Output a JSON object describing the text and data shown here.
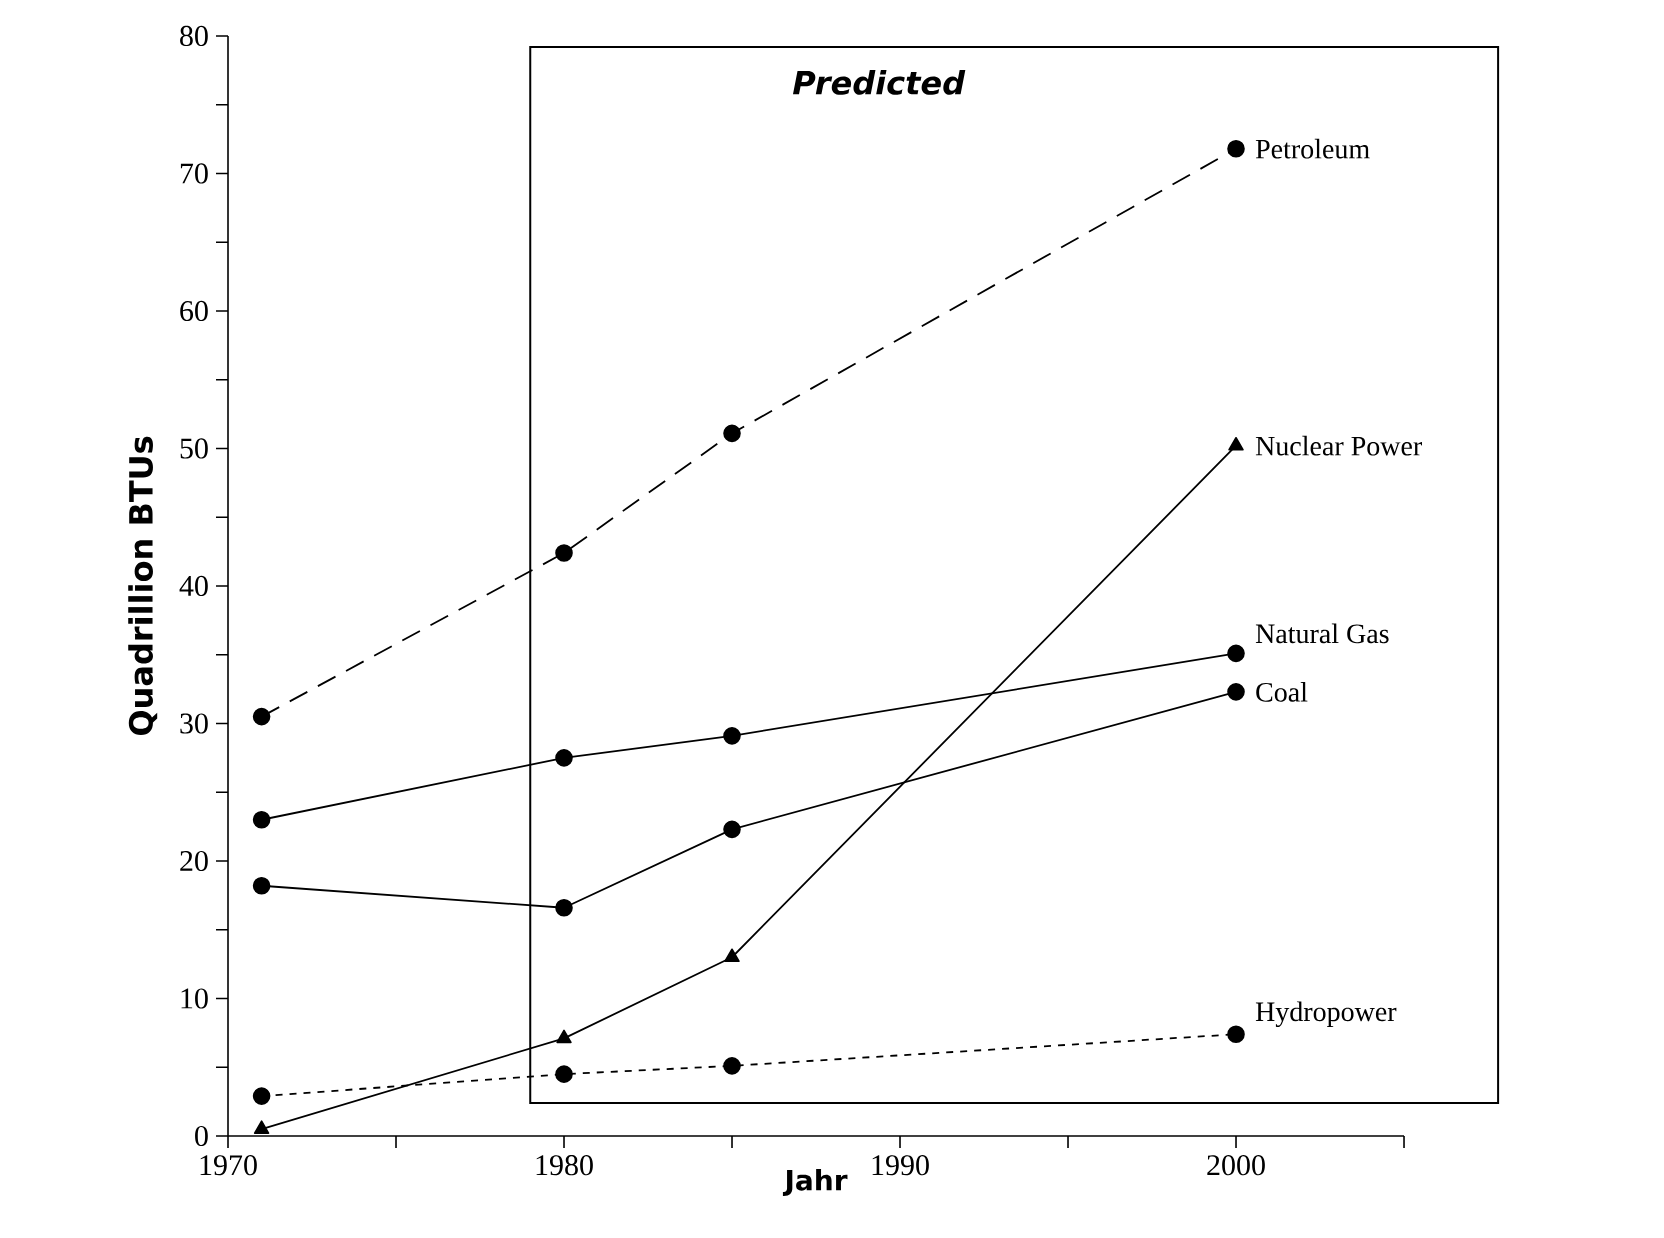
{
  "chart_data": {
    "type": "line",
    "xlabel": "Jahr",
    "ylabel": "Quadrillion BTUs",
    "annotations": [
      "Predicted"
    ],
    "x": [
      1971,
      1980,
      1985,
      2000
    ],
    "xlim": [
      1970,
      2005
    ],
    "ylim": [
      0,
      80
    ],
    "xticks": [
      1970,
      {
        "value": 1975,
        "label": null
      },
      1980,
      {
        "value": 1985,
        "label": null
      },
      1990,
      {
        "value": 1995,
        "label": null
      },
      2000,
      {
        "value": 2005,
        "label": null
      }
    ],
    "yticks": [
      0,
      {
        "value": 5,
        "label": null
      },
      10,
      {
        "value": 15,
        "label": null
      },
      20,
      {
        "value": 25,
        "label": null
      },
      30,
      {
        "value": 35,
        "label": null
      },
      40,
      {
        "value": 45,
        "label": null
      },
      50,
      {
        "value": 55,
        "label": null
      },
      60,
      {
        "value": 65,
        "label": null
      },
      70,
      {
        "value": 75,
        "label": null
      },
      80
    ],
    "grid": false,
    "legend": false,
    "series": [
      {
        "name": "Petroleum",
        "color": "#000000",
        "values": [
          30.5,
          42.4,
          51.1,
          71.8
        ],
        "marker": "circle",
        "line_style": "dashed"
      },
      {
        "name": "Nuclear Power",
        "color": "#000000",
        "values": [
          0.5,
          7.1,
          13.0,
          50.2
        ],
        "marker": "triangle",
        "line_style": "solid"
      },
      {
        "name": "Natural Gas",
        "color": "#000000",
        "values": [
          23.0,
          27.5,
          29.1,
          35.1
        ],
        "marker": "circle",
        "line_style": "solid"
      },
      {
        "name": "Coal",
        "color": "#000000",
        "values": [
          18.2,
          16.6,
          22.3,
          32.3
        ],
        "marker": "circle",
        "line_style": "solid"
      },
      {
        "name": "Hydropower",
        "color": "#000000",
        "values": [
          2.9,
          4.5,
          5.1,
          7.4
        ],
        "marker": "circle",
        "line_style": "dotted"
      }
    ]
  }
}
